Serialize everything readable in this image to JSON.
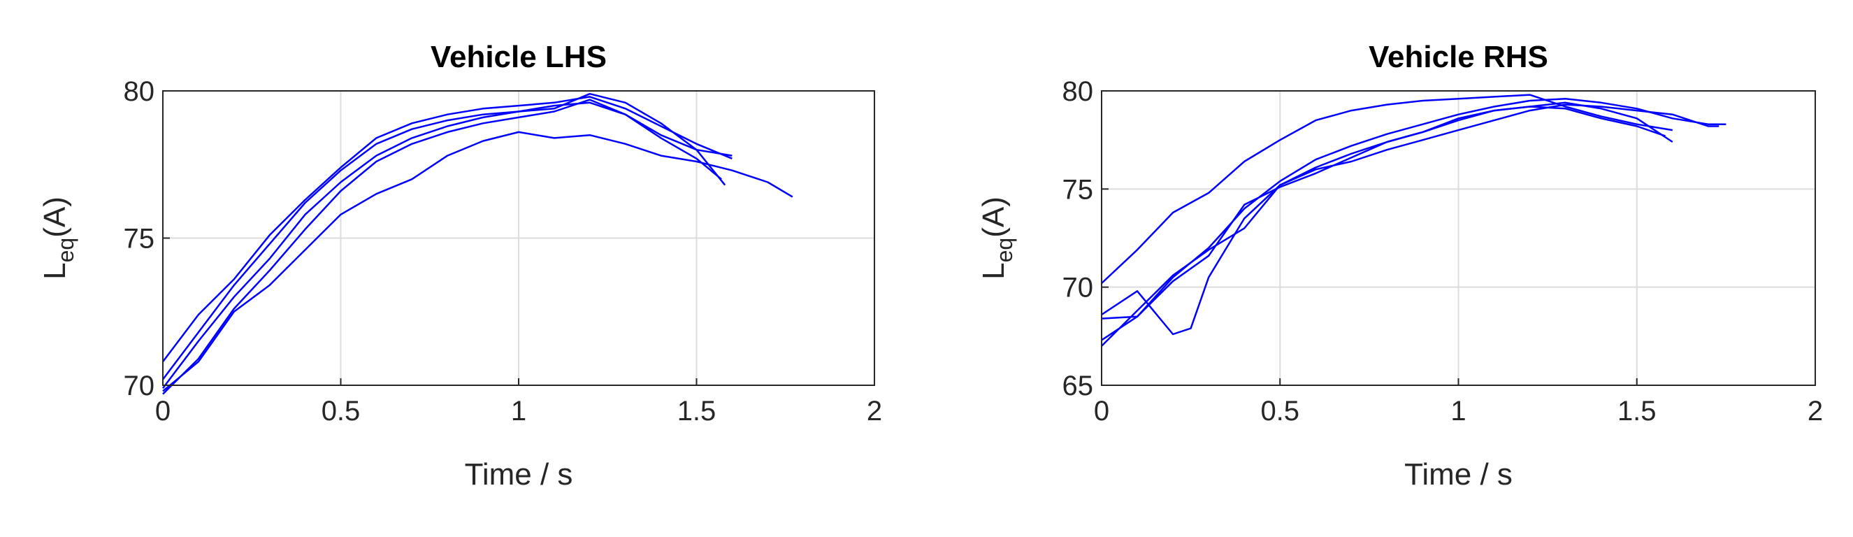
{
  "chart_data": [
    {
      "type": "line",
      "title": "Vehicle LHS",
      "xlabel": "Time / s",
      "ylabel": {
        "main": "L",
        "sub": "eq",
        "rest": "(A)"
      },
      "xlim": [
        0,
        2
      ],
      "ylim": [
        70,
        80
      ],
      "xticks": [
        0,
        0.5,
        1,
        1.5,
        2
      ],
      "yticks": [
        70,
        75,
        80
      ],
      "grid": true,
      "series": [
        {
          "color": "#0000ff",
          "x": [
            0,
            0.1,
            0.2,
            0.3,
            0.4,
            0.5,
            0.6,
            0.7,
            0.8,
            0.9,
            1.0,
            1.1,
            1.2,
            1.3,
            1.4,
            1.5,
            1.6
          ],
          "values": [
            70.8,
            72.4,
            73.6,
            75.1,
            76.3,
            77.4,
            78.4,
            78.9,
            79.2,
            79.4,
            79.5,
            79.6,
            79.8,
            79.4,
            78.8,
            78.2,
            77.7
          ]
        },
        {
          "color": "#0000ff",
          "x": [
            0,
            0.1,
            0.2,
            0.3,
            0.4,
            0.5,
            0.6,
            0.7,
            0.8,
            0.9,
            1.0,
            1.1,
            1.2,
            1.3,
            1.4,
            1.5,
            1.58
          ],
          "values": [
            70.2,
            71.8,
            73.4,
            74.8,
            76.2,
            77.3,
            78.2,
            78.7,
            79.0,
            79.2,
            79.3,
            79.4,
            79.9,
            79.6,
            78.9,
            78.0,
            76.8
          ]
        },
        {
          "color": "#0000ff",
          "x": [
            0,
            0.1,
            0.2,
            0.3,
            0.4,
            0.5,
            0.6,
            0.7,
            0.8,
            0.9,
            1.0,
            1.1,
            1.2,
            1.3,
            1.4,
            1.5,
            1.6
          ],
          "values": [
            69.9,
            71.5,
            73.0,
            74.3,
            75.8,
            76.9,
            77.8,
            78.4,
            78.8,
            79.1,
            79.3,
            79.5,
            79.6,
            79.2,
            78.5,
            78.0,
            77.8
          ]
        },
        {
          "color": "#0000ff",
          "x": [
            0,
            0.1,
            0.2,
            0.3,
            0.4,
            0.5,
            0.6,
            0.7,
            0.8,
            0.9,
            1.0,
            1.1,
            1.2,
            1.3,
            1.4,
            1.5,
            1.57
          ],
          "values": [
            69.7,
            70.9,
            72.6,
            73.9,
            75.3,
            76.6,
            77.6,
            78.2,
            78.6,
            78.9,
            79.1,
            79.3,
            79.7,
            79.2,
            78.4,
            77.7,
            77.0
          ]
        },
        {
          "color": "#0000ff",
          "x": [
            0,
            0.1,
            0.2,
            0.3,
            0.4,
            0.5,
            0.6,
            0.7,
            0.8,
            0.9,
            1.0,
            1.1,
            1.2,
            1.3,
            1.4,
            1.5,
            1.6,
            1.7,
            1.77
          ],
          "values": [
            69.8,
            70.8,
            72.5,
            73.4,
            74.6,
            75.8,
            76.5,
            77.0,
            77.8,
            78.3,
            78.6,
            78.4,
            78.5,
            78.2,
            77.8,
            77.6,
            77.3,
            76.9,
            76.4
          ]
        }
      ]
    },
    {
      "type": "line",
      "title": "Vehicle RHS",
      "xlabel": "Time / s",
      "ylabel": {
        "main": "L",
        "sub": "eq",
        "rest": "(A)"
      },
      "xlim": [
        0,
        2
      ],
      "ylim": [
        65,
        80
      ],
      "xticks": [
        0,
        0.5,
        1,
        1.5,
        2
      ],
      "yticks": [
        65,
        70,
        75,
        80
      ],
      "grid": true,
      "series": [
        {
          "color": "#0000ff",
          "x": [
            0,
            0.1,
            0.2,
            0.3,
            0.4,
            0.5,
            0.6,
            0.7,
            0.8,
            0.9,
            1.0,
            1.1,
            1.2,
            1.3,
            1.4,
            1.5,
            1.6
          ],
          "values": [
            70.2,
            71.9,
            73.8,
            74.8,
            76.4,
            77.5,
            78.5,
            79.0,
            79.3,
            79.5,
            79.6,
            79.7,
            79.8,
            79.2,
            78.7,
            78.3,
            78.0
          ]
        },
        {
          "color": "#0000ff",
          "x": [
            0,
            0.1,
            0.2,
            0.25,
            0.3,
            0.4,
            0.5,
            0.6,
            0.7,
            0.8,
            0.9,
            1.0,
            1.1,
            1.2,
            1.3,
            1.4,
            1.5,
            1.6
          ],
          "values": [
            68.6,
            69.8,
            67.6,
            67.9,
            70.5,
            73.5,
            75.2,
            76.1,
            76.8,
            77.4,
            77.9,
            78.6,
            79.0,
            79.2,
            79.4,
            79.1,
            78.6,
            77.4
          ]
        },
        {
          "color": "#0000ff",
          "x": [
            0,
            0.1,
            0.2,
            0.3,
            0.4,
            0.5,
            0.6,
            0.7,
            0.8,
            0.9,
            1.0,
            1.1,
            1.2,
            1.3,
            1.4,
            1.5,
            1.6,
            1.7,
            1.73
          ],
          "values": [
            67.0,
            68.8,
            70.6,
            71.9,
            73.0,
            75.2,
            76.0,
            76.4,
            77.0,
            77.5,
            78.0,
            78.5,
            79.0,
            79.3,
            79.2,
            79.0,
            78.8,
            78.2,
            78.2
          ]
        },
        {
          "color": "#0000ff",
          "x": [
            0,
            0.1,
            0.2,
            0.3,
            0.4,
            0.5,
            0.6,
            0.7,
            0.8,
            0.9,
            1.0,
            1.1,
            1.2,
            1.3,
            1.4,
            1.5,
            1.6,
            1.7,
            1.75
          ],
          "values": [
            67.3,
            68.5,
            70.5,
            72.0,
            74.0,
            75.4,
            76.5,
            77.2,
            77.8,
            78.3,
            78.8,
            79.2,
            79.5,
            79.6,
            79.4,
            79.1,
            78.6,
            78.3,
            78.3
          ]
        },
        {
          "color": "#0000ff",
          "x": [
            0,
            0.1,
            0.2,
            0.3,
            0.4,
            0.5,
            0.6,
            0.7,
            0.8,
            0.9,
            1.0,
            1.1,
            1.2,
            1.3,
            1.4,
            1.5,
            1.58
          ],
          "values": [
            68.4,
            68.5,
            70.3,
            71.6,
            74.2,
            75.1,
            75.8,
            76.6,
            77.4,
            77.9,
            78.5,
            79.0,
            79.2,
            79.1,
            78.6,
            78.2,
            77.7
          ]
        }
      ]
    }
  ]
}
